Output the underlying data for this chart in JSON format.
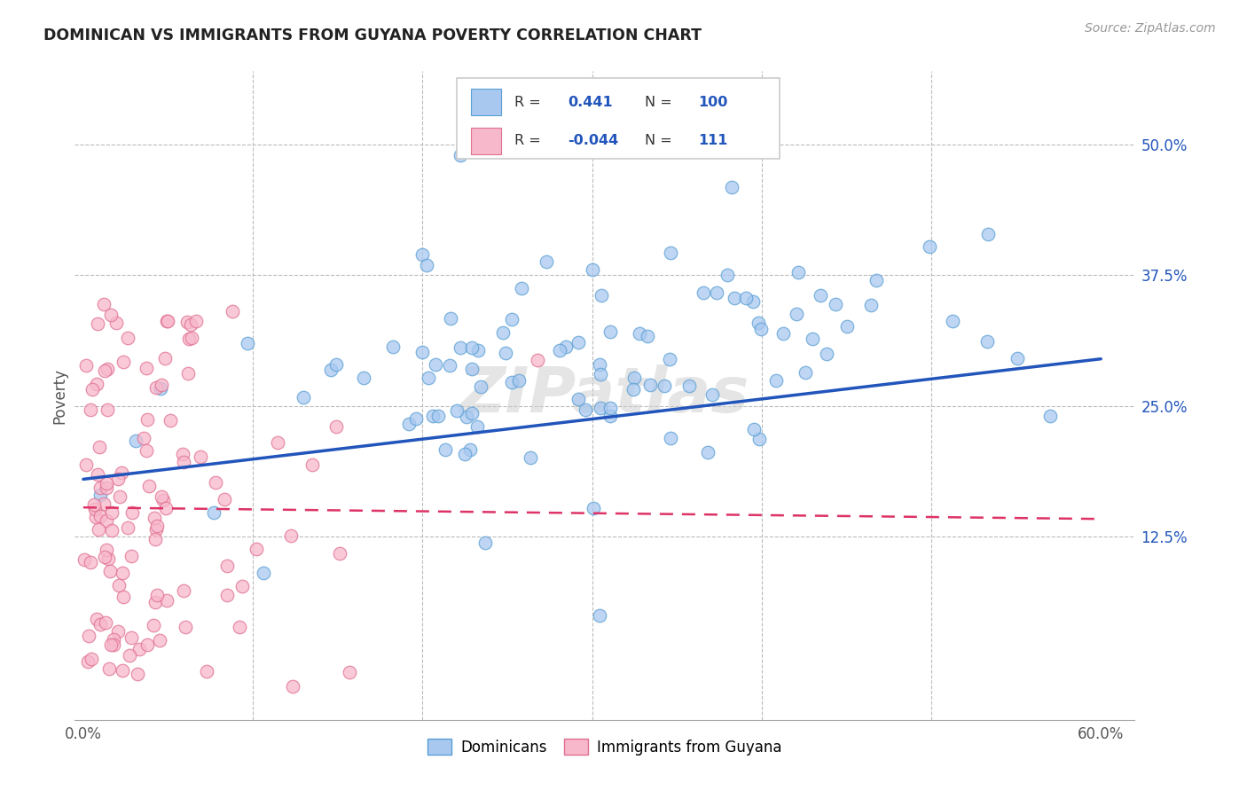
{
  "title": "DOMINICAN VS IMMIGRANTS FROM GUYANA POVERTY CORRELATION CHART",
  "source": "Source: ZipAtlas.com",
  "ylabel": "Poverty",
  "ytick_labels": [
    "12.5%",
    "25.0%",
    "37.5%",
    "50.0%"
  ],
  "ytick_values": [
    0.125,
    0.25,
    0.375,
    0.5
  ],
  "xlim": [
    -0.005,
    0.62
  ],
  "ylim": [
    -0.05,
    0.57
  ],
  "legend_labels": [
    "Dominicans",
    "Immigrants from Guyana"
  ],
  "blue_R": 0.441,
  "blue_N": 100,
  "pink_R": -0.044,
  "pink_N": 111,
  "blue_color": "#a8c8f0",
  "pink_color": "#f7b8cc",
  "blue_edge": "#5a9fd4",
  "pink_edge": "#e07090",
  "blue_line_color": "#2255bb",
  "pink_line_color": "#dd3366",
  "watermark": "ZIPatlas",
  "background_color": "#ffffff",
  "grid_color": "#bbbbbb",
  "xtick_show": [
    0.0,
    0.6
  ],
  "xtick_minor": [
    0.1,
    0.2,
    0.3,
    0.4,
    0.5
  ],
  "blue_line_y0": 0.18,
  "blue_line_y1": 0.295,
  "pink_line_y0": 0.153,
  "pink_line_y1": 0.142
}
